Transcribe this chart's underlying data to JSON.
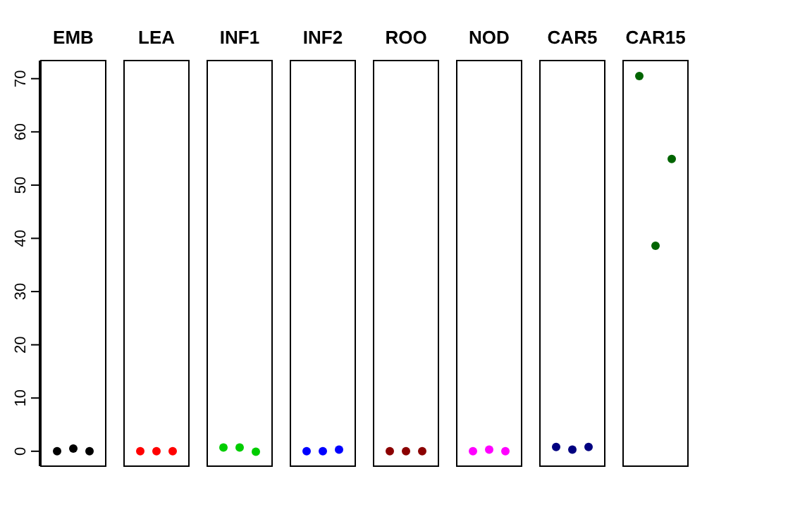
{
  "chart_data": {
    "type": "scatter",
    "categories": [
      "EMB",
      "LEA",
      "INF1",
      "INF2",
      "ROO",
      "NOD",
      "CAR5",
      "CAR15"
    ],
    "series": [
      {
        "colors": [
          "#000000",
          "#ff0000",
          "#00cd00",
          "#0000ff",
          "#8b0000",
          "#ff00ff",
          "#000080",
          "#006400"
        ],
        "values": [
          0,
          0,
          0.7,
          0,
          0,
          0,
          0.8,
          70.5
        ]
      },
      {
        "colors": [
          "#000000",
          "#ff0000",
          "#00cd00",
          "#0000ff",
          "#8b0000",
          "#ff00ff",
          "#000080",
          "#006400"
        ],
        "values": [
          0.5,
          0,
          0.7,
          0,
          0,
          0.3,
          0.3,
          38.6
        ]
      },
      {
        "colors": [
          "#000000",
          "#ff0000",
          "#00cd00",
          "#0000ff",
          "#8b0000",
          "#ff00ff",
          "#000080",
          "#006400"
        ],
        "values": [
          0,
          0,
          -0.1,
          0.3,
          0,
          0,
          0.8,
          54.9
        ]
      }
    ],
    "ylim": [
      -2.8,
      73.4
    ],
    "yticks": [
      0,
      10,
      20,
      30,
      40,
      50,
      60,
      70
    ],
    "marker": "circle"
  }
}
